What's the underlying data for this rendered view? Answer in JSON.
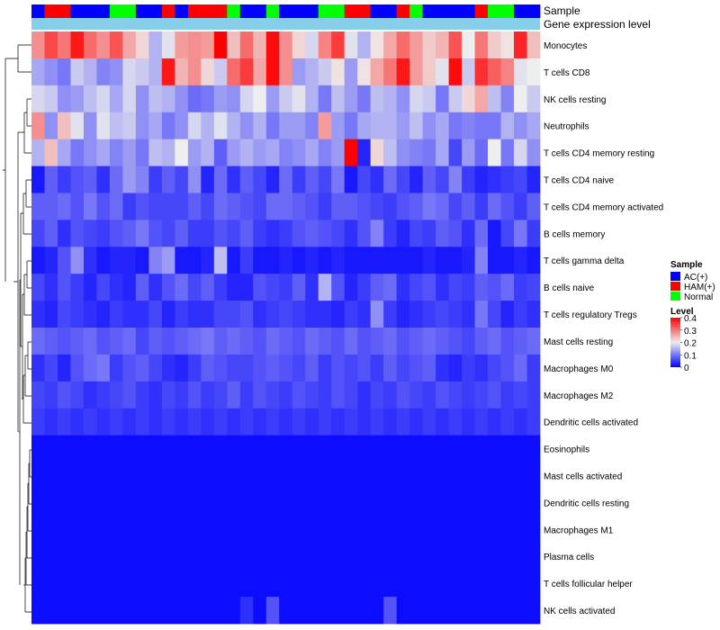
{
  "chart_data": {
    "type": "heatmap",
    "annotations": {
      "sample_label": "Sample",
      "gene_label": "Gene expression level",
      "samples": [
        "AC(+)",
        "HAM(+)",
        "HAM(+)",
        "AC(+)",
        "AC(+)",
        "AC(+)",
        "Normal",
        "Normal",
        "AC(+)",
        "AC(+)",
        "HAM(+)",
        "AC(+)",
        "HAM(+)",
        "HAM(+)",
        "HAM(+)",
        "Normal",
        "AC(+)",
        "AC(+)",
        "Normal",
        "AC(+)",
        "AC(+)",
        "AC(+)",
        "Normal",
        "Normal",
        "HAM(+)",
        "HAM(+)",
        "AC(+)",
        "AC(+)",
        "HAM(+)",
        "Normal",
        "AC(+)",
        "AC(+)",
        "AC(+)",
        "AC(+)",
        "HAM(+)",
        "Normal",
        "Normal",
        "AC(+)",
        "AC(+)"
      ]
    },
    "rows": [
      "Monocytes",
      "T cells CD8",
      "NK cells resting",
      "Neutrophils",
      "T cells CD4 memory resting",
      "T cells CD4 naive",
      "T cells CD4 memory activated",
      "B cells memory",
      "T cells gamma delta",
      "B cells naive",
      "T cells regulatory  Tregs",
      "Mast cells resting",
      "Macrophages M0",
      "Macrophages M2",
      "Dendritic cells activated",
      "Eosinophils",
      "Mast cells activated",
      "Dendritic cells resting",
      "Macrophages M1",
      "Plasma cells",
      "T cells follicular helper",
      "NK cells activated"
    ],
    "values": [
      [
        0.28,
        0.34,
        0.3,
        0.38,
        0.31,
        0.28,
        0.33,
        0.26,
        0.22,
        0.15,
        0.19,
        0.27,
        0.28,
        0.27,
        0.4,
        0.24,
        0.31,
        0.25,
        0.39,
        0.28,
        0.22,
        0.18,
        0.29,
        0.35,
        0.19,
        0.15,
        0.21,
        0.26,
        0.31,
        0.27,
        0.23,
        0.25,
        0.33,
        0.2,
        0.3,
        0.23,
        0.21,
        0.37,
        0.24
      ],
      [
        0.14,
        0.12,
        0.1,
        0.17,
        0.15,
        0.11,
        0.12,
        0.18,
        0.17,
        0.15,
        0.38,
        0.25,
        0.28,
        0.22,
        0.17,
        0.31,
        0.35,
        0.26,
        0.39,
        0.28,
        0.13,
        0.15,
        0.17,
        0.21,
        0.13,
        0.21,
        0.26,
        0.3,
        0.38,
        0.27,
        0.23,
        0.19,
        0.39,
        0.17,
        0.36,
        0.32,
        0.29,
        0.19,
        0.2
      ],
      [
        0.18,
        0.17,
        0.12,
        0.13,
        0.16,
        0.18,
        0.14,
        0.18,
        0.12,
        0.16,
        0.15,
        0.12,
        0.09,
        0.1,
        0.13,
        0.12,
        0.18,
        0.2,
        0.13,
        0.17,
        0.19,
        0.15,
        0.1,
        0.16,
        0.13,
        0.1,
        0.16,
        0.15,
        0.12,
        0.18,
        0.17,
        0.1,
        0.17,
        0.22,
        0.26,
        0.16,
        0.11,
        0.2,
        0.17
      ],
      [
        0.28,
        0.12,
        0.24,
        0.19,
        0.12,
        0.19,
        0.16,
        0.17,
        0.12,
        0.14,
        0.1,
        0.12,
        0.18,
        0.15,
        0.19,
        0.15,
        0.12,
        0.15,
        0.1,
        0.13,
        0.13,
        0.11,
        0.27,
        0.13,
        0.1,
        0.14,
        0.15,
        0.15,
        0.13,
        0.16,
        0.12,
        0.14,
        0.1,
        0.11,
        0.1,
        0.1,
        0.15,
        0.12,
        0.14
      ],
      [
        0.15,
        0.24,
        0.14,
        0.1,
        0.12,
        0.14,
        0.11,
        0.13,
        0.1,
        0.16,
        0.15,
        0.2,
        0.13,
        0.15,
        0.08,
        0.13,
        0.15,
        0.13,
        0.14,
        0.11,
        0.12,
        0.14,
        0.11,
        0.13,
        0.4,
        0.03,
        0.22,
        0.16,
        0.12,
        0.11,
        0.1,
        0.14,
        0.06,
        0.13,
        0.09,
        0.2,
        0.1,
        0.18,
        0.12
      ],
      [
        0.02,
        0.08,
        0.05,
        0.07,
        0.08,
        0.04,
        0.09,
        0.13,
        0.11,
        0.05,
        0.08,
        0.06,
        0.12,
        0.03,
        0.09,
        0.04,
        0.08,
        0.06,
        0.03,
        0.09,
        0.05,
        0.08,
        0.06,
        0.1,
        0.02,
        0.06,
        0.04,
        0.09,
        0.06,
        0.03,
        0.08,
        0.06,
        0.11,
        0.05,
        0.03,
        0.04,
        0.05,
        0.06,
        0.03
      ],
      [
        0.08,
        0.08,
        0.09,
        0.07,
        0.1,
        0.07,
        0.09,
        0.05,
        0.07,
        0.06,
        0.06,
        0.06,
        0.08,
        0.06,
        0.09,
        0.08,
        0.07,
        0.06,
        0.09,
        0.09,
        0.08,
        0.07,
        0.05,
        0.08,
        0.08,
        0.07,
        0.06,
        0.05,
        0.07,
        0.08,
        0.1,
        0.09,
        0.06,
        0.08,
        0.05,
        0.09,
        0.07,
        0.05,
        0.08
      ],
      [
        0.06,
        0.08,
        0.04,
        0.07,
        0.06,
        0.05,
        0.07,
        0.08,
        0.1,
        0.07,
        0.06,
        0.08,
        0.05,
        0.05,
        0.07,
        0.06,
        0.08,
        0.05,
        0.04,
        0.05,
        0.07,
        0.08,
        0.07,
        0.06,
        0.04,
        0.07,
        0.11,
        0.05,
        0.03,
        0.06,
        0.05,
        0.08,
        0.07,
        0.04,
        0.09,
        0.02,
        0.06,
        0.1,
        0.05
      ],
      [
        0.02,
        0.03,
        0.07,
        0.12,
        0.04,
        0.02,
        0.03,
        0.03,
        0.02,
        0.11,
        0.13,
        0.02,
        0.02,
        0.03,
        0.16,
        0.02,
        0.05,
        0.02,
        0.02,
        0.03,
        0.02,
        0.03,
        0.02,
        0.03,
        0.02,
        0.02,
        0.02,
        0.02,
        0.02,
        0.02,
        0.03,
        0.02,
        0.02,
        0.03,
        0.11,
        0.02,
        0.02,
        0.03,
        0.02
      ],
      [
        0.06,
        0.04,
        0.07,
        0.05,
        0.03,
        0.06,
        0.04,
        0.03,
        0.08,
        0.04,
        0.07,
        0.09,
        0.06,
        0.08,
        0.05,
        0.03,
        0.03,
        0.07,
        0.06,
        0.05,
        0.08,
        0.04,
        0.15,
        0.07,
        0.03,
        0.05,
        0.08,
        0.09,
        0.04,
        0.06,
        0.07,
        0.04,
        0.06,
        0.05,
        0.08,
        0.07,
        0.09,
        0.05,
        0.06
      ],
      [
        0.04,
        0.03,
        0.06,
        0.05,
        0.04,
        0.03,
        0.05,
        0.04,
        0.04,
        0.06,
        0.03,
        0.05,
        0.04,
        0.04,
        0.06,
        0.06,
        0.07,
        0.04,
        0.05,
        0.06,
        0.05,
        0.04,
        0.04,
        0.03,
        0.05,
        0.04,
        0.12,
        0.05,
        0.03,
        0.04,
        0.05,
        0.06,
        0.05,
        0.04,
        0.1,
        0.06,
        0.03,
        0.05,
        0.04
      ],
      [
        0.09,
        0.08,
        0.07,
        0.08,
        0.09,
        0.07,
        0.08,
        0.09,
        0.06,
        0.08,
        0.07,
        0.08,
        0.09,
        0.1,
        0.08,
        0.09,
        0.08,
        0.07,
        0.09,
        0.08,
        0.07,
        0.09,
        0.08,
        0.07,
        0.09,
        0.07,
        0.08,
        0.09,
        0.07,
        0.08,
        0.09,
        0.08,
        0.07,
        0.06,
        0.08,
        0.09,
        0.07,
        0.08,
        0.09
      ],
      [
        0.04,
        0.06,
        0.03,
        0.07,
        0.09,
        0.1,
        0.05,
        0.07,
        0.08,
        0.06,
        0.04,
        0.03,
        0.05,
        0.08,
        0.07,
        0.06,
        0.06,
        0.07,
        0.08,
        0.07,
        0.06,
        0.08,
        0.05,
        0.07,
        0.06,
        0.07,
        0.05,
        0.08,
        0.06,
        0.07,
        0.08,
        0.04,
        0.03,
        0.05,
        0.04,
        0.06,
        0.07,
        0.09,
        0.05
      ],
      [
        0.06,
        0.05,
        0.07,
        0.06,
        0.04,
        0.05,
        0.06,
        0.07,
        0.05,
        0.04,
        0.06,
        0.05,
        0.07,
        0.05,
        0.06,
        0.08,
        0.05,
        0.07,
        0.06,
        0.05,
        0.07,
        0.06,
        0.05,
        0.07,
        0.06,
        0.04,
        0.06,
        0.05,
        0.07,
        0.06,
        0.05,
        0.07,
        0.06,
        0.05,
        0.06,
        0.07,
        0.05,
        0.06,
        0.05
      ],
      [
        0.05,
        0.04,
        0.05,
        0.04,
        0.05,
        0.04,
        0.05,
        0.04,
        0.05,
        0.04,
        0.05,
        0.04,
        0.05,
        0.04,
        0.05,
        0.04,
        0.05,
        0.04,
        0.05,
        0.04,
        0.05,
        0.04,
        0.05,
        0.04,
        0.05,
        0.04,
        0.05,
        0.04,
        0.05,
        0.04,
        0.05,
        0.04,
        0.05,
        0.04,
        0.05,
        0.04,
        0.05,
        0.04,
        0.05
      ],
      [
        0.01,
        0.01,
        0.01,
        0.01,
        0.01,
        0.01,
        0.01,
        0.01,
        0.01,
        0.01,
        0.01,
        0.01,
        0.01,
        0.01,
        0.01,
        0.01,
        0.01,
        0.01,
        0.01,
        0.01,
        0.01,
        0.01,
        0.01,
        0.01,
        0.01,
        0.01,
        0.01,
        0.01,
        0.01,
        0.01,
        0.01,
        0.01,
        0.01,
        0.01,
        0.01,
        0.01,
        0.01,
        0.01,
        0.01
      ],
      [
        0.01,
        0.01,
        0.01,
        0.01,
        0.01,
        0.01,
        0.01,
        0.01,
        0.01,
        0.01,
        0.01,
        0.01,
        0.01,
        0.01,
        0.01,
        0.01,
        0.01,
        0.01,
        0.01,
        0.01,
        0.01,
        0.01,
        0.01,
        0.01,
        0.01,
        0.01,
        0.01,
        0.01,
        0.01,
        0.01,
        0.01,
        0.01,
        0.01,
        0.01,
        0.01,
        0.01,
        0.01,
        0.01,
        0.01
      ],
      [
        0.01,
        0.01,
        0.01,
        0.01,
        0.01,
        0.01,
        0.01,
        0.01,
        0.01,
        0.01,
        0.01,
        0.01,
        0.01,
        0.01,
        0.01,
        0.01,
        0.01,
        0.01,
        0.01,
        0.01,
        0.01,
        0.01,
        0.01,
        0.01,
        0.01,
        0.01,
        0.01,
        0.01,
        0.01,
        0.01,
        0.01,
        0.01,
        0.01,
        0.01,
        0.01,
        0.01,
        0.01,
        0.01,
        0.01
      ],
      [
        0.01,
        0.01,
        0.01,
        0.01,
        0.01,
        0.01,
        0.01,
        0.01,
        0.01,
        0.01,
        0.01,
        0.01,
        0.01,
        0.01,
        0.01,
        0.01,
        0.01,
        0.01,
        0.01,
        0.01,
        0.01,
        0.01,
        0.01,
        0.01,
        0.01,
        0.01,
        0.01,
        0.01,
        0.01,
        0.01,
        0.01,
        0.01,
        0.01,
        0.01,
        0.01,
        0.01,
        0.01,
        0.01,
        0.01
      ],
      [
        0.01,
        0.01,
        0.01,
        0.01,
        0.01,
        0.01,
        0.01,
        0.01,
        0.01,
        0.01,
        0.01,
        0.01,
        0.01,
        0.01,
        0.01,
        0.01,
        0.01,
        0.01,
        0.01,
        0.01,
        0.01,
        0.01,
        0.01,
        0.01,
        0.01,
        0.01,
        0.01,
        0.01,
        0.01,
        0.01,
        0.01,
        0.01,
        0.01,
        0.01,
        0.01,
        0.01,
        0.01,
        0.01,
        0.01
      ],
      [
        0.01,
        0.01,
        0.01,
        0.01,
        0.01,
        0.01,
        0.01,
        0.01,
        0.01,
        0.01,
        0.01,
        0.01,
        0.01,
        0.01,
        0.01,
        0.01,
        0.01,
        0.01,
        0.01,
        0.01,
        0.01,
        0.01,
        0.01,
        0.01,
        0.01,
        0.01,
        0.01,
        0.01,
        0.01,
        0.01,
        0.01,
        0.01,
        0.01,
        0.01,
        0.01,
        0.01,
        0.01,
        0.01,
        0.01
      ],
      [
        0.01,
        0.01,
        0.01,
        0.01,
        0.01,
        0.01,
        0.01,
        0.01,
        0.01,
        0.01,
        0.01,
        0.01,
        0.01,
        0.01,
        0.01,
        0.01,
        0.04,
        0.01,
        0.07,
        0.01,
        0.01,
        0.01,
        0.01,
        0.01,
        0.01,
        0.01,
        0.01,
        0.07,
        0.01,
        0.01,
        0.01,
        0.01,
        0.01,
        0.01,
        0.01,
        0.01,
        0.01,
        0.01,
        0.01
      ]
    ],
    "legend": {
      "sample_title": "Sample",
      "sample_levels": [
        "AC(+)",
        "HAM(+)",
        "Normal"
      ],
      "sample_colors": [
        "#0000ff",
        "#ff0000",
        "#00ff00"
      ],
      "level_title": "Level",
      "level_ticks": [
        "0.4",
        "0.3",
        "0.2",
        "0.1",
        "0"
      ],
      "color_low": "#0000ff",
      "color_mid": "#eeeeee",
      "color_high": "#ff0000",
      "gene_bar_color": "#87ceeb"
    },
    "value_range": [
      0,
      0.4
    ],
    "title": "",
    "xlabel": "",
    "ylabel": ""
  }
}
